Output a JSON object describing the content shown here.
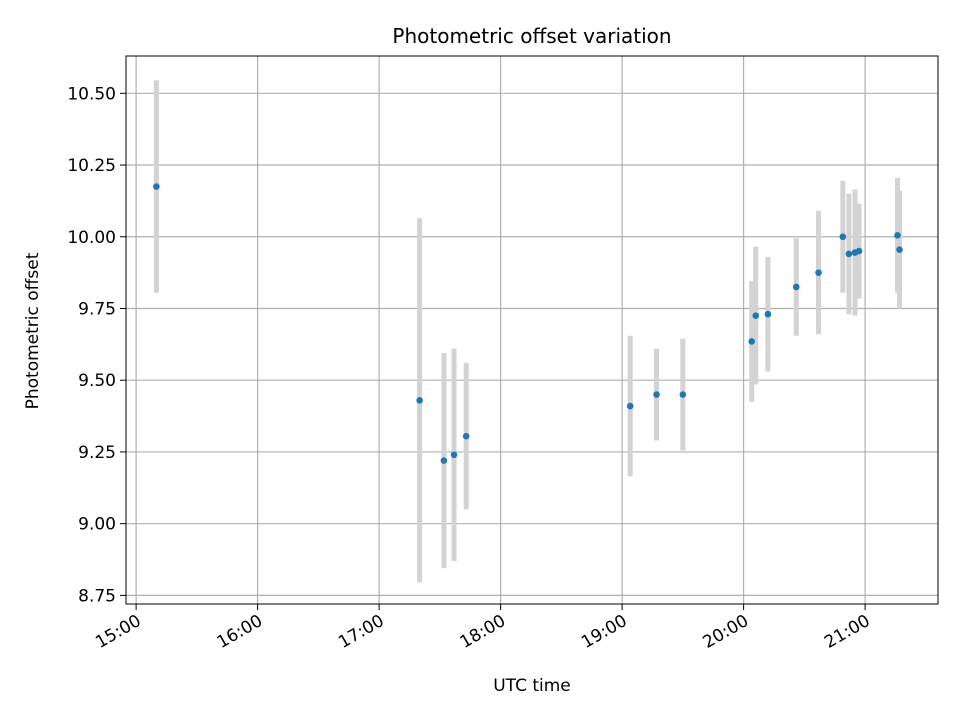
{
  "chart_data": {
    "type": "scatter",
    "title": "Photometric offset variation",
    "xlabel": "UTC time",
    "ylabel": "Photometric offset",
    "grid": true,
    "legend": "none",
    "x_ticks": [
      "15:00",
      "16:00",
      "17:00",
      "18:00",
      "19:00",
      "20:00",
      "21:00"
    ],
    "y_ticks": [
      "8.75",
      "9.00",
      "9.25",
      "9.50",
      "9.75",
      "10.00",
      "10.25",
      "10.50"
    ],
    "xlim": [
      "14:55",
      "21:36"
    ],
    "ylim": [
      8.72,
      10.63
    ],
    "colors": {
      "point": "#1f77b4",
      "errorbar": "#d3d3d3",
      "grid": "#b0b0b0"
    },
    "points": [
      {
        "time": "15:10",
        "y": 10.175,
        "err": 0.37
      },
      {
        "time": "17:20",
        "y": 9.43,
        "err": 0.635
      },
      {
        "time": "17:32",
        "y": 9.22,
        "err": 0.375
      },
      {
        "time": "17:37",
        "y": 9.24,
        "err": 0.37
      },
      {
        "time": "17:43",
        "y": 9.305,
        "err": 0.255
      },
      {
        "time": "19:04",
        "y": 9.41,
        "err": 0.245
      },
      {
        "time": "19:17",
        "y": 9.45,
        "err": 0.16
      },
      {
        "time": "19:30",
        "y": 9.45,
        "err": 0.195
      },
      {
        "time": "20:04",
        "y": 9.635,
        "err": 0.21
      },
      {
        "time": "20:06",
        "y": 9.725,
        "err": 0.24
      },
      {
        "time": "20:12",
        "y": 9.73,
        "err": 0.2
      },
      {
        "time": "20:26",
        "y": 9.825,
        "err": 0.17
      },
      {
        "time": "20:37",
        "y": 9.875,
        "err": 0.215
      },
      {
        "time": "20:49",
        "y": 10.0,
        "err": 0.195
      },
      {
        "time": "20:52",
        "y": 9.94,
        "err": 0.21
      },
      {
        "time": "20:55",
        "y": 9.945,
        "err": 0.22
      },
      {
        "time": "20:57",
        "y": 9.95,
        "err": 0.165
      },
      {
        "time": "21:16",
        "y": 10.005,
        "err": 0.2
      },
      {
        "time": "21:17",
        "y": 9.955,
        "err": 0.205
      }
    ]
  }
}
